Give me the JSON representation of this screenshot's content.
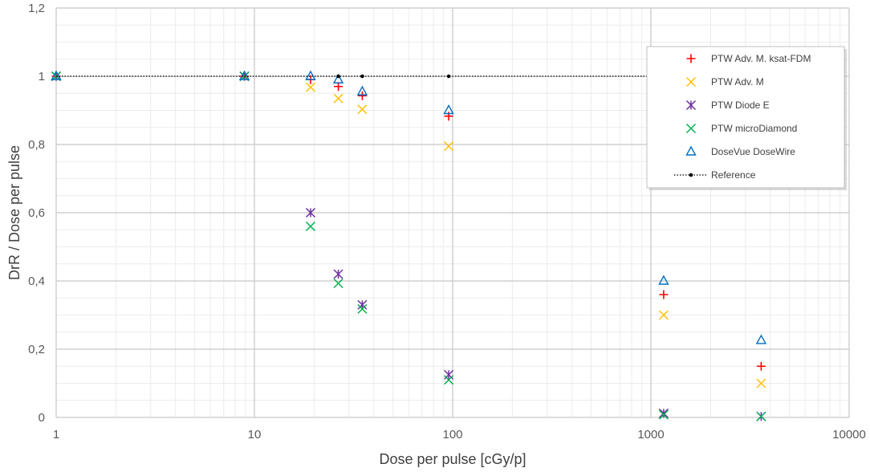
{
  "chart_data": {
    "type": "scatter",
    "title": "",
    "xlabel": "Dose per pulse [cGy/p]",
    "ylabel": "DrR / Dose per pulse",
    "xscale": "log",
    "xlim": [
      1,
      10000
    ],
    "ylim": [
      0,
      1.2
    ],
    "x_ticks": [
      1,
      10,
      100,
      1000,
      10000
    ],
    "x_tick_labels": [
      "1",
      "10",
      "100",
      "1000",
      "10000"
    ],
    "y_ticks": [
      0,
      0.2,
      0.4,
      0.6,
      0.8,
      1.0,
      1.2
    ],
    "y_tick_labels": [
      "0",
      "0,2",
      "0,4",
      "0,6",
      "0,8",
      "1",
      "1,2"
    ],
    "grid": true,
    "legend_position": "top-right",
    "series": [
      {
        "name": "PTW Adv. M. ksat-FDM",
        "marker": "plus",
        "color": "#FF0000",
        "points": [
          [
            1,
            1.0
          ],
          [
            8.9,
            1.0
          ],
          [
            19.2,
            0.99
          ],
          [
            26.5,
            0.97
          ],
          [
            35,
            0.943
          ],
          [
            95.5,
            0.883
          ],
          [
            1160,
            0.36
          ],
          [
            3600,
            0.15
          ]
        ]
      },
      {
        "name": "PTW Adv. M",
        "marker": "x",
        "color": "#FFC000",
        "points": [
          [
            1,
            1.0
          ],
          [
            8.9,
            1.0
          ],
          [
            19.2,
            0.968
          ],
          [
            26.5,
            0.935
          ],
          [
            35,
            0.903
          ],
          [
            95.5,
            0.795
          ],
          [
            1160,
            0.3
          ],
          [
            3600,
            0.1
          ]
        ]
      },
      {
        "name": "PTW Diode E",
        "marker": "star",
        "color": "#7030A0",
        "points": [
          [
            1,
            1.0
          ],
          [
            8.9,
            1.0
          ],
          [
            19.2,
            0.6
          ],
          [
            26.5,
            0.42
          ],
          [
            35,
            0.33
          ],
          [
            95.5,
            0.125
          ],
          [
            1160,
            0.012
          ],
          [
            3600,
            0.003
          ]
        ]
      },
      {
        "name": "PTW microDiamond",
        "marker": "x",
        "color": "#00B050",
        "points": [
          [
            1,
            1.0
          ],
          [
            8.9,
            1.0
          ],
          [
            19.2,
            0.56
          ],
          [
            26.5,
            0.393
          ],
          [
            35,
            0.318
          ],
          [
            95.5,
            0.11
          ],
          [
            1160,
            0.008
          ],
          [
            3600,
            0.003
          ]
        ]
      },
      {
        "name": "DoseVue DoseWire",
        "marker": "triangle",
        "color": "#0070C0",
        "points": [
          [
            1,
            1.0
          ],
          [
            8.9,
            1.0
          ],
          [
            19.2,
            1.0
          ],
          [
            26.5,
            0.99
          ],
          [
            35,
            0.955
          ],
          [
            95.5,
            0.9
          ],
          [
            1160,
            0.4
          ],
          [
            3600,
            0.226
          ]
        ]
      },
      {
        "name": "Reference",
        "marker": "line-dot",
        "color": "#000000",
        "line_x": [
          1,
          1500
        ],
        "line_y": 1.0,
        "points": [
          [
            26.5,
            1.0
          ],
          [
            35,
            1.0
          ],
          [
            95.5,
            1.0
          ]
        ]
      }
    ]
  }
}
